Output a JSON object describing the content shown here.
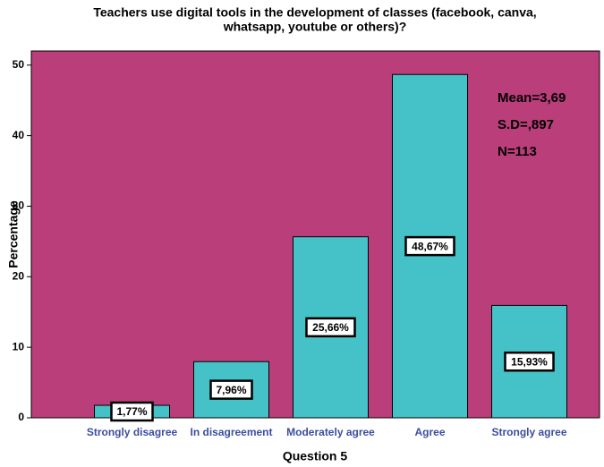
{
  "chart_data": {
    "type": "bar",
    "title": [
      "Teachers use digital tools in the development of classes (facebook, canva,",
      "whatsapp, youtube or others)?"
    ],
    "categories": [
      "Strongly disagree",
      "In disagreement",
      "Moderately agree",
      "Agree",
      "Strongly agree"
    ],
    "values": [
      1.77,
      7.96,
      25.66,
      48.67,
      15.93
    ],
    "value_labels": [
      "1,77%",
      "7,96%",
      "25,66%",
      "48,67%",
      "15,93%"
    ],
    "color": "#45c2c7",
    "background": "#b93e7a",
    "xlabel": "Question 5",
    "ylabel": "Percentage",
    "ylim": [
      0,
      52
    ],
    "yticks": [
      0,
      10,
      20,
      30,
      40,
      50
    ],
    "annotations": [
      "Mean=3,69",
      "S.D=,897",
      "N=113"
    ]
  }
}
